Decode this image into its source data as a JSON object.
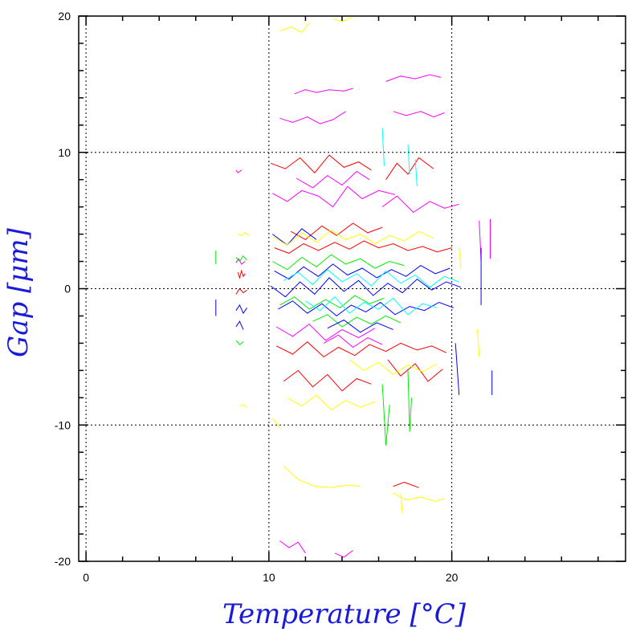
{
  "chart_data": {
    "type": "line",
    "xlabel": "Temperature [°C]",
    "ylabel": "Gap [μm]",
    "xlim": [
      -0.4,
      29.5
    ],
    "ylim": [
      -20,
      20
    ],
    "x_ticks": [
      0,
      10,
      20
    ],
    "y_ticks": [
      -20,
      -10,
      0,
      10,
      20
    ],
    "x_minor_step": 2,
    "y_minor_step": 2,
    "grid": {
      "x": [
        0,
        10,
        20
      ],
      "y": [
        -10,
        0,
        10
      ],
      "style": "dotted"
    },
    "legend": "none",
    "colors": [
      "#ff0000",
      "#00ee00",
      "#0000ff",
      "#ffff00",
      "#ff00ff",
      "#00ffff"
    ],
    "note_series": "Dense overlapping traces; values approximated",
    "series": [
      {
        "color": "#ff00ff",
        "x": [
          10.6,
          11.3,
          12.1,
          12.8,
          13.5,
          14.2
        ],
        "y": [
          12.5,
          12.2,
          12.6,
          12.1,
          12.4,
          13.0
        ]
      },
      {
        "color": "#ff00ff",
        "x": [
          11.4,
          12.0,
          12.6,
          13.3,
          14.1,
          14.6
        ],
        "y": [
          14.3,
          14.6,
          14.4,
          14.6,
          14.5,
          14.7
        ]
      },
      {
        "color": "#ff00ff",
        "x": [
          16.4,
          17.2,
          18.0,
          18.8,
          19.4
        ],
        "y": [
          15.2,
          15.6,
          15.4,
          15.7,
          15.5
        ]
      },
      {
        "color": "#ff00ff",
        "x": [
          16.8,
          17.5,
          18.3,
          19.0,
          19.6
        ],
        "y": [
          13.0,
          12.7,
          13.0,
          12.6,
          12.9
        ]
      },
      {
        "color": "#ff00ff",
        "x": [
          10.2,
          11.0,
          11.8,
          12.7,
          13.5,
          14.3,
          15.1,
          16.0,
          16.9
        ],
        "y": [
          7.0,
          6.4,
          7.2,
          6.8,
          6.0,
          7.5,
          6.6,
          7.2,
          6.9
        ]
      },
      {
        "color": "#ff00ff",
        "x": [
          11.5,
          12.4,
          13.2,
          14.0,
          14.8,
          15.5
        ],
        "y": [
          8.1,
          7.4,
          8.3,
          7.6,
          8.6,
          8.0
        ]
      },
      {
        "color": "#ff00ff",
        "x": [
          16.2,
          17.0,
          17.9,
          18.8,
          19.6,
          20.4
        ],
        "y": [
          6.0,
          6.8,
          5.6,
          6.4,
          5.9,
          6.2
        ]
      },
      {
        "color": "#ff00ff",
        "x": [
          10.4,
          11.3,
          12.2,
          13.1,
          14.0,
          14.9,
          15.8
        ],
        "y": [
          -2.8,
          -3.5,
          -2.6,
          -3.8,
          -3.0,
          -3.6,
          -2.9
        ]
      },
      {
        "color": "#ff00ff",
        "x": [
          13.0,
          13.8,
          14.6,
          15.4,
          16.2
        ],
        "y": [
          -4.0,
          -3.4,
          -4.3,
          -3.6,
          -4.1
        ]
      },
      {
        "color": "#ff00ff",
        "x": [
          10.6,
          11.1,
          11.6,
          12.0
        ],
        "y": [
          -18.5,
          -19.0,
          -18.6,
          -19.4
        ]
      },
      {
        "color": "#ff00ff",
        "x": [
          13.6,
          14.1,
          14.6
        ],
        "y": [
          -19.4,
          -19.7,
          -19.2
        ]
      },
      {
        "color": "#ff00ff",
        "x": [
          8.2,
          8.3,
          8.4,
          8.5
        ],
        "y": [
          8.7,
          8.5,
          8.6,
          8.7
        ]
      },
      {
        "color": "#ff00ff",
        "x": [
          8.2,
          8.35,
          8.5,
          8.7
        ],
        "y": [
          1.9,
          2.2,
          1.8,
          2.0
        ]
      },
      {
        "color": "#ff00ff",
        "x": [
          21.5,
          21.6
        ],
        "y": [
          5.0,
          2.0
        ]
      },
      {
        "color": "#ff00ff",
        "x": [
          22.1,
          22.1
        ],
        "y": [
          5.1,
          2.2
        ]
      },
      {
        "color": "#ff0000",
        "x": [
          10.1,
          10.9,
          11.7,
          12.5,
          13.3,
          14.1,
          14.9,
          15.6
        ],
        "y": [
          9.2,
          8.8,
          9.6,
          8.5,
          9.8,
          8.9,
          9.3,
          8.7
        ]
      },
      {
        "color": "#ff0000",
        "x": [
          11.2,
          12.0,
          12.9,
          13.7,
          14.6,
          15.4,
          16.2
        ],
        "y": [
          4.2,
          3.6,
          4.6,
          3.9,
          4.8,
          4.1,
          4.5
        ]
      },
      {
        "color": "#ff0000",
        "x": [
          10.3,
          11.1,
          11.9,
          12.7,
          13.6,
          14.4,
          15.2,
          16.0,
          16.8,
          17.6,
          18.4,
          19.2,
          20.0
        ],
        "y": [
          3.0,
          2.6,
          3.3,
          2.8,
          3.4,
          2.9,
          3.5,
          3.0,
          3.3,
          2.8,
          3.1,
          2.7,
          3.0
        ]
      },
      {
        "color": "#ff0000",
        "x": [
          10.4,
          11.3,
          12.1,
          13.0,
          13.8,
          14.7,
          15.5,
          16.4,
          17.2,
          18.1,
          18.9,
          19.7
        ],
        "y": [
          -4.2,
          -4.8,
          -3.9,
          -5.0,
          -4.3,
          -4.9,
          -4.1,
          -4.6,
          -4.0,
          -4.5,
          -4.2,
          -4.7
        ]
      },
      {
        "color": "#ff0000",
        "x": [
          10.8,
          11.6,
          12.4,
          13.2,
          14.0,
          14.8,
          15.6
        ],
        "y": [
          -6.8,
          -6.0,
          -7.2,
          -6.3,
          -7.5,
          -6.6,
          -7.0
        ]
      },
      {
        "color": "#ff0000",
        "x": [
          16.5,
          17.2,
          18.0,
          18.7,
          19.5
        ],
        "y": [
          -5.2,
          -6.4,
          -5.5,
          -6.8,
          -5.9
        ]
      },
      {
        "color": "#ff0000",
        "x": [
          16.4,
          17.0,
          17.6,
          18.2,
          19.0
        ],
        "y": [
          8.0,
          9.2,
          8.4,
          9.6,
          8.8
        ]
      },
      {
        "color": "#ff0000",
        "x": [
          16.8,
          17.4,
          18.2
        ],
        "y": [
          -14.5,
          -14.2,
          -14.6
        ]
      },
      {
        "color": "#ff0000",
        "x": [
          8.3,
          8.4,
          8.5,
          8.6,
          8.7
        ],
        "y": [
          1.2,
          0.8,
          1.3,
          0.9,
          1.1
        ]
      },
      {
        "color": "#ff0000",
        "x": [
          8.2,
          8.4,
          8.6,
          8.8
        ],
        "y": [
          -0.4,
          0.0,
          -0.3,
          -0.1
        ]
      },
      {
        "color": "#00ee00",
        "x": [
          10.2,
          11.0,
          11.8,
          12.6,
          13.4,
          14.2,
          15.0,
          15.8,
          16.6,
          17.4
        ],
        "y": [
          2.0,
          1.4,
          2.3,
          1.6,
          2.5,
          1.8,
          2.2,
          1.5,
          2.0,
          1.7
        ]
      },
      {
        "color": "#00ee00",
        "x": [
          10.6,
          11.4,
          12.2,
          13.1,
          13.9,
          14.7,
          15.5,
          16.3
        ],
        "y": [
          -1.2,
          -0.6,
          -1.5,
          -0.8,
          -1.4,
          -0.5,
          -1.1,
          -0.7
        ]
      },
      {
        "color": "#00ee00",
        "x": [
          12.4,
          13.2,
          14.0,
          14.8,
          15.6,
          16.4,
          17.2
        ],
        "y": [
          -2.4,
          -1.9,
          -2.8,
          -2.1,
          -2.6,
          -2.0,
          -2.5
        ]
      },
      {
        "color": "#00ee00",
        "x": [
          16.2,
          16.4,
          16.6
        ],
        "y": [
          -7.0,
          -11.5,
          -8.5
        ]
      },
      {
        "color": "#00ee00",
        "x": [
          17.6,
          17.7,
          17.8
        ],
        "y": [
          -6.0,
          -10.5,
          -8.0
        ]
      },
      {
        "color": "#00ee00",
        "x": [
          8.2,
          8.4,
          8.6,
          8.8
        ],
        "y": [
          2.3,
          2.0,
          2.4,
          2.1
        ]
      },
      {
        "color": "#00ee00",
        "x": [
          8.2,
          8.4,
          8.6
        ],
        "y": [
          -3.8,
          -4.1,
          -3.9
        ]
      },
      {
        "color": "#00ee00",
        "x": [
          7.1,
          7.1
        ],
        "y": [
          2.8,
          1.8
        ]
      },
      {
        "color": "#0000ff",
        "x": [
          10.1,
          10.9,
          11.7,
          12.5,
          13.3,
          14.1,
          14.9,
          15.7,
          16.5,
          17.3,
          18.1,
          18.9,
          19.7,
          20.5
        ],
        "y": [
          0.2,
          -0.6,
          0.5,
          -0.4,
          0.8,
          -0.2,
          0.6,
          -0.5,
          0.4,
          -0.3,
          0.7,
          -0.1,
          0.5,
          0.1
        ]
      },
      {
        "color": "#0000ff",
        "x": [
          10.3,
          11.1,
          11.9,
          12.7,
          13.5,
          14.3,
          15.1,
          15.9,
          16.7,
          17.5,
          18.3,
          19.1,
          19.9
        ],
        "y": [
          1.3,
          0.7,
          1.6,
          0.9,
          1.8,
          1.0,
          1.5,
          0.8,
          1.4,
          0.9,
          1.7,
          1.1,
          1.5
        ]
      },
      {
        "color": "#0000ff",
        "x": [
          10.5,
          11.3,
          12.1,
          12.9,
          13.7,
          14.5,
          15.3,
          16.1,
          16.9,
          17.7,
          18.5,
          19.3,
          20.1
        ],
        "y": [
          -1.5,
          -0.9,
          -1.8,
          -1.1,
          -2.0,
          -1.2,
          -1.7,
          -1.0,
          -1.9,
          -1.3,
          -1.6,
          -1.0,
          -1.4
        ]
      },
      {
        "color": "#0000ff",
        "x": [
          10.2,
          11.0,
          11.8,
          12.6
        ],
        "y": [
          4.0,
          3.2,
          4.4,
          3.6
        ]
      },
      {
        "color": "#0000ff",
        "x": [
          13.2,
          14.1,
          15.0,
          15.9,
          16.8
        ],
        "y": [
          -2.9,
          -2.3,
          -3.2,
          -2.5,
          -3.0
        ]
      },
      {
        "color": "#0000ff",
        "x": [
          20.2,
          20.4
        ],
        "y": [
          -4.0,
          -7.8
        ]
      },
      {
        "color": "#0000ff",
        "x": [
          21.6,
          21.6
        ],
        "y": [
          3.0,
          -1.2
        ]
      },
      {
        "color": "#0000ff",
        "x": [
          22.2,
          22.2
        ],
        "y": [
          -6.0,
          -7.8
        ]
      },
      {
        "color": "#0000ff",
        "x": [
          8.2,
          8.4,
          8.6,
          8.8
        ],
        "y": [
          -1.6,
          -1.2,
          -1.8,
          -1.4
        ]
      },
      {
        "color": "#0000ff",
        "x": [
          8.2,
          8.4,
          8.6
        ],
        "y": [
          -2.8,
          -2.4,
          -3.0
        ]
      },
      {
        "color": "#0000ff",
        "x": [
          7.1,
          7.1
        ],
        "y": [
          -0.8,
          -2.0
        ]
      },
      {
        "color": "#ffff00",
        "x": [
          10.6,
          11.2,
          11.8,
          12.2
        ],
        "y": [
          18.9,
          19.2,
          18.8,
          19.5
        ]
      },
      {
        "color": "#ffff00",
        "x": [
          13.5,
          14.0,
          14.5
        ],
        "y": [
          19.8,
          19.6,
          19.9
        ]
      },
      {
        "color": "#ffff00",
        "x": [
          10.2,
          11.0,
          11.8,
          12.6,
          13.4,
          14.2,
          15.0,
          15.8,
          16.6,
          17.4,
          18.2,
          19.0
        ],
        "y": [
          3.8,
          3.2,
          4.1,
          3.4,
          4.3,
          3.6,
          4.0,
          3.3,
          3.9,
          3.5,
          4.2,
          3.7
        ]
      },
      {
        "color": "#ffff00",
        "x": [
          14.4,
          15.2,
          16.0,
          16.8,
          17.6,
          18.4,
          19.2
        ],
        "y": [
          -5.2,
          -6.0,
          -5.4,
          -6.3,
          -5.6,
          -6.1,
          -5.5
        ]
      },
      {
        "color": "#ffff00",
        "x": [
          11.0,
          11.8,
          12.6,
          13.4,
          14.2,
          15.0,
          15.8
        ],
        "y": [
          -8.0,
          -8.6,
          -7.8,
          -8.9,
          -8.2,
          -8.7,
          -8.3
        ]
      },
      {
        "color": "#ffff00",
        "x": [
          10.2,
          10.6
        ],
        "y": [
          -9.5,
          -10.2
        ]
      },
      {
        "color": "#ffff00",
        "x": [
          10.8,
          11.6,
          12.5,
          13.4,
          14.3,
          15.0
        ],
        "y": [
          -13.0,
          -14.0,
          -14.5,
          -14.6,
          -14.4,
          -14.5
        ]
      },
      {
        "color": "#ffff00",
        "x": [
          16.8,
          17.5,
          18.3,
          19.1,
          19.6
        ],
        "y": [
          -15.0,
          -15.5,
          -15.3,
          -15.6,
          -15.4
        ]
      },
      {
        "color": "#ffff00",
        "x": [
          17.2,
          17.3
        ],
        "y": [
          -15.0,
          -16.5
        ]
      },
      {
        "color": "#ffff00",
        "x": [
          8.3,
          8.5,
          8.7,
          8.9
        ],
        "y": [
          4.0,
          3.9,
          4.1,
          3.9
        ]
      },
      {
        "color": "#ffff00",
        "x": [
          8.4,
          8.6,
          8.8
        ],
        "y": [
          -8.6,
          -8.5,
          -8.7
        ]
      },
      {
        "color": "#ffff00",
        "x": [
          20.4,
          20.5
        ],
        "y": [
          3.0,
          1.5
        ]
      },
      {
        "color": "#ffff00",
        "x": [
          21.4,
          21.5
        ],
        "y": [
          -3.0,
          -5.0
        ]
      },
      {
        "color": "#00ffff",
        "x": [
          10.8,
          11.6,
          12.4,
          13.2,
          14.0,
          14.8,
          15.6,
          16.4,
          17.2,
          18.0,
          18.8,
          19.6,
          20.4
        ],
        "y": [
          0.6,
          1.2,
          0.3,
          1.4,
          0.5,
          1.1,
          0.2,
          1.3,
          0.4,
          1.0,
          0.1,
          0.9,
          0.5
        ]
      },
      {
        "color": "#00ffff",
        "x": [
          12.0,
          12.8,
          13.6,
          14.4,
          15.2,
          16.0,
          16.8,
          17.6,
          18.4,
          19.2
        ],
        "y": [
          -0.9,
          -1.6,
          -0.6,
          -1.8,
          -1.0,
          -1.5,
          -0.7,
          -1.9,
          -1.1,
          -1.4
        ]
      },
      {
        "color": "#00ffff",
        "x": [
          16.2,
          16.3
        ],
        "y": [
          11.8,
          9.0
        ]
      },
      {
        "color": "#00ffff",
        "x": [
          18.0,
          18.1
        ],
        "y": [
          9.5,
          7.5
        ]
      },
      {
        "color": "#00ffff",
        "x": [
          17.6,
          17.7
        ],
        "y": [
          10.6,
          8.4
        ]
      }
    ]
  }
}
